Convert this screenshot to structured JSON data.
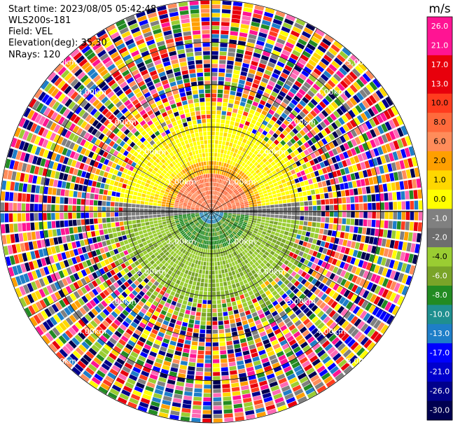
{
  "header": {
    "start_time": "Start time: 2023/08/05 05:42:48",
    "instrument": "WLS200s-181",
    "field": "Field: VEL",
    "elevation": "Elevation(deg): 35.30",
    "nrays": "NRays: 120"
  },
  "chart_data": {
    "type": "heatmap",
    "projection": "polar-ppi",
    "field": "VEL",
    "nrays": 120,
    "range_rings_km": [
      1.0,
      2.0,
      3.0,
      4.0,
      5.0
    ],
    "ring_labels": [
      "1.00km",
      "2.00km",
      "3.00km",
      "4.00km",
      "5.00km"
    ],
    "max_range_km": 5.0,
    "colorbar": {
      "unit": "m/s",
      "ticks": [
        "26.0",
        "21.0",
        "17.0",
        "13.0",
        "10.0",
        "8.0",
        "6.0",
        "2.0",
        "1.0",
        "0.0",
        "-1.0",
        "-2.0",
        "-4.0",
        "-6.0",
        "-8.0",
        "-10.0",
        "-13.0",
        "-17.0",
        "-21.0",
        "-26.0",
        "-30.0"
      ],
      "colors": [
        "#ff1493",
        "#ff1493",
        "#e8000c",
        "#e8000c",
        "#ff3c1e",
        "#ff6a3c",
        "#ff8c5a",
        "#ff9f00",
        "#ffd700",
        "#ffff00",
        "#808080",
        "#6e6e6e",
        "#9acd32",
        "#7aa428",
        "#228b22",
        "#1f8f8f",
        "#1e7ec8",
        "#0000ff",
        "#0000cd",
        "#00008b",
        "#000050"
      ]
    }
  }
}
